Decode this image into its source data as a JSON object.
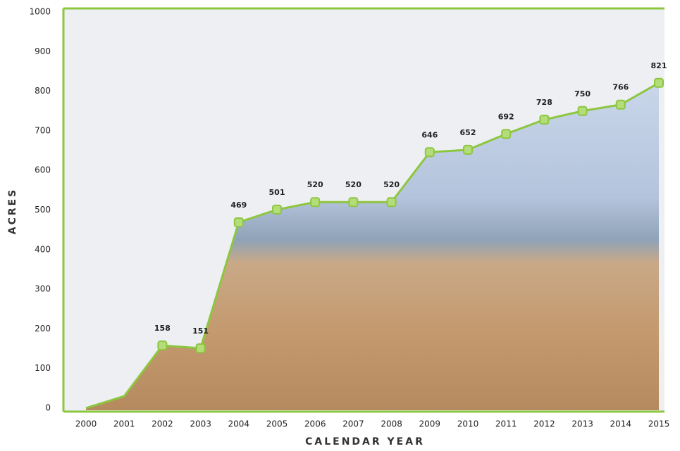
{
  "chart_data": {
    "type": "area",
    "y_label": "ACRES",
    "x_label": "CALENDAR YEAR",
    "categories": [
      "2000",
      "2001",
      "2002",
      "2003",
      "2004",
      "2005",
      "2006",
      "2007",
      "2008",
      "2009",
      "2010",
      "2011",
      "2012",
      "2013",
      "2014",
      "2015"
    ],
    "values": [
      0,
      30,
      158,
      151,
      469,
      501,
      520,
      520,
      520,
      646,
      652,
      692,
      728,
      750,
      766,
      821
    ],
    "value_labels": [
      null,
      null,
      "158",
      "151",
      "469",
      "501",
      "520",
      "520",
      "520",
      "646",
      "652",
      "692",
      "728",
      "750",
      "766",
      "821"
    ],
    "color": "#8dc63f",
    "ylim": [
      0,
      1000
    ],
    "yticks": [
      0,
      100,
      200,
      300,
      400,
      500,
      600,
      700,
      800,
      900,
      1000
    ]
  }
}
